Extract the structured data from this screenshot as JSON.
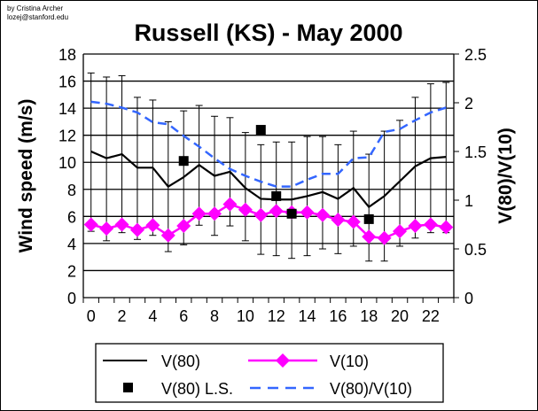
{
  "credit": [
    "by Cristina Archer",
    "lozej@stanford.edu"
  ],
  "chart_data": {
    "type": "line",
    "title": "Russell (KS) - May 2000",
    "xlabel": "",
    "ylabel": "Wind speed (m/s)",
    "y2label": "V(80)/V(10)",
    "ylim": [
      0,
      18
    ],
    "y2lim": [
      0,
      2.5
    ],
    "yticks": [
      0,
      2,
      4,
      6,
      8,
      10,
      12,
      14,
      16,
      18
    ],
    "y2ticks": [
      "0",
      "0.5",
      "1",
      "1.5",
      "2",
      "2.5"
    ],
    "x": [
      0,
      1,
      2,
      3,
      4,
      5,
      6,
      7,
      8,
      9,
      10,
      11,
      12,
      13,
      14,
      15,
      16,
      17,
      18,
      19,
      20,
      21,
      22,
      23
    ],
    "xticklabels": [
      "0",
      "2",
      "4",
      "6",
      "8",
      "10",
      "12",
      "14",
      "16",
      "18",
      "20",
      "22"
    ],
    "grid": true,
    "legend_placement": "bottom",
    "series": [
      {
        "name": "V(80)",
        "axis": "left",
        "style": "solid-line",
        "color": "#000000",
        "values": [
          10.8,
          10.3,
          10.6,
          9.6,
          9.6,
          8.2,
          8.9,
          9.8,
          9.0,
          9.3,
          8.1,
          7.3,
          7.25,
          7.25,
          7.5,
          7.8,
          7.3,
          8.1,
          6.7,
          7.5,
          8.6,
          9.7,
          10.3,
          10.4
        ],
        "error_upper": [
          16.6,
          16.3,
          16.4,
          14.8,
          14.6,
          13.0,
          13.8,
          14.2,
          13.4,
          13.3,
          12.2,
          11.3,
          11.5,
          11.5,
          11.9,
          11.9,
          11.3,
          12.3,
          10.6,
          12.3,
          13.1,
          14.8,
          15.8,
          15.9
        ],
        "error_lower": [
          4.9,
          4.2,
          4.8,
          4.3,
          4.6,
          3.4,
          3.9,
          5.35,
          4.6,
          5.3,
          4.2,
          3.2,
          3.1,
          2.9,
          3.1,
          3.6,
          3.25,
          3.8,
          2.7,
          2.7,
          3.8,
          4.4,
          4.8,
          4.8
        ]
      },
      {
        "name": "V(10)",
        "axis": "left",
        "style": "diamond-line",
        "color": "#FF00FF",
        "values": [
          5.4,
          5.1,
          5.4,
          5.0,
          5.35,
          4.6,
          5.3,
          6.2,
          6.2,
          6.9,
          6.5,
          6.1,
          6.4,
          6.3,
          6.3,
          6.1,
          5.75,
          5.6,
          4.5,
          4.4,
          4.9,
          5.3,
          5.4,
          5.2
        ]
      },
      {
        "name": "V(80) L.S.",
        "axis": "left",
        "style": "square-marker",
        "color": "#000000",
        "points": [
          [
            6,
            10.1
          ],
          [
            11,
            12.4
          ],
          [
            12,
            7.5
          ],
          [
            13,
            6.2
          ],
          [
            18,
            5.8
          ]
        ]
      },
      {
        "name": "V(80)/V(10)",
        "axis": "right",
        "style": "dashed-line",
        "color": "#3366FF",
        "values": [
          2.01,
          1.99,
          1.95,
          1.9,
          1.8,
          1.78,
          1.66,
          1.55,
          1.43,
          1.32,
          1.25,
          1.19,
          1.14,
          1.14,
          1.21,
          1.27,
          1.27,
          1.43,
          1.44,
          1.7,
          1.73,
          1.82,
          1.9,
          1.95
        ]
      }
    ]
  }
}
